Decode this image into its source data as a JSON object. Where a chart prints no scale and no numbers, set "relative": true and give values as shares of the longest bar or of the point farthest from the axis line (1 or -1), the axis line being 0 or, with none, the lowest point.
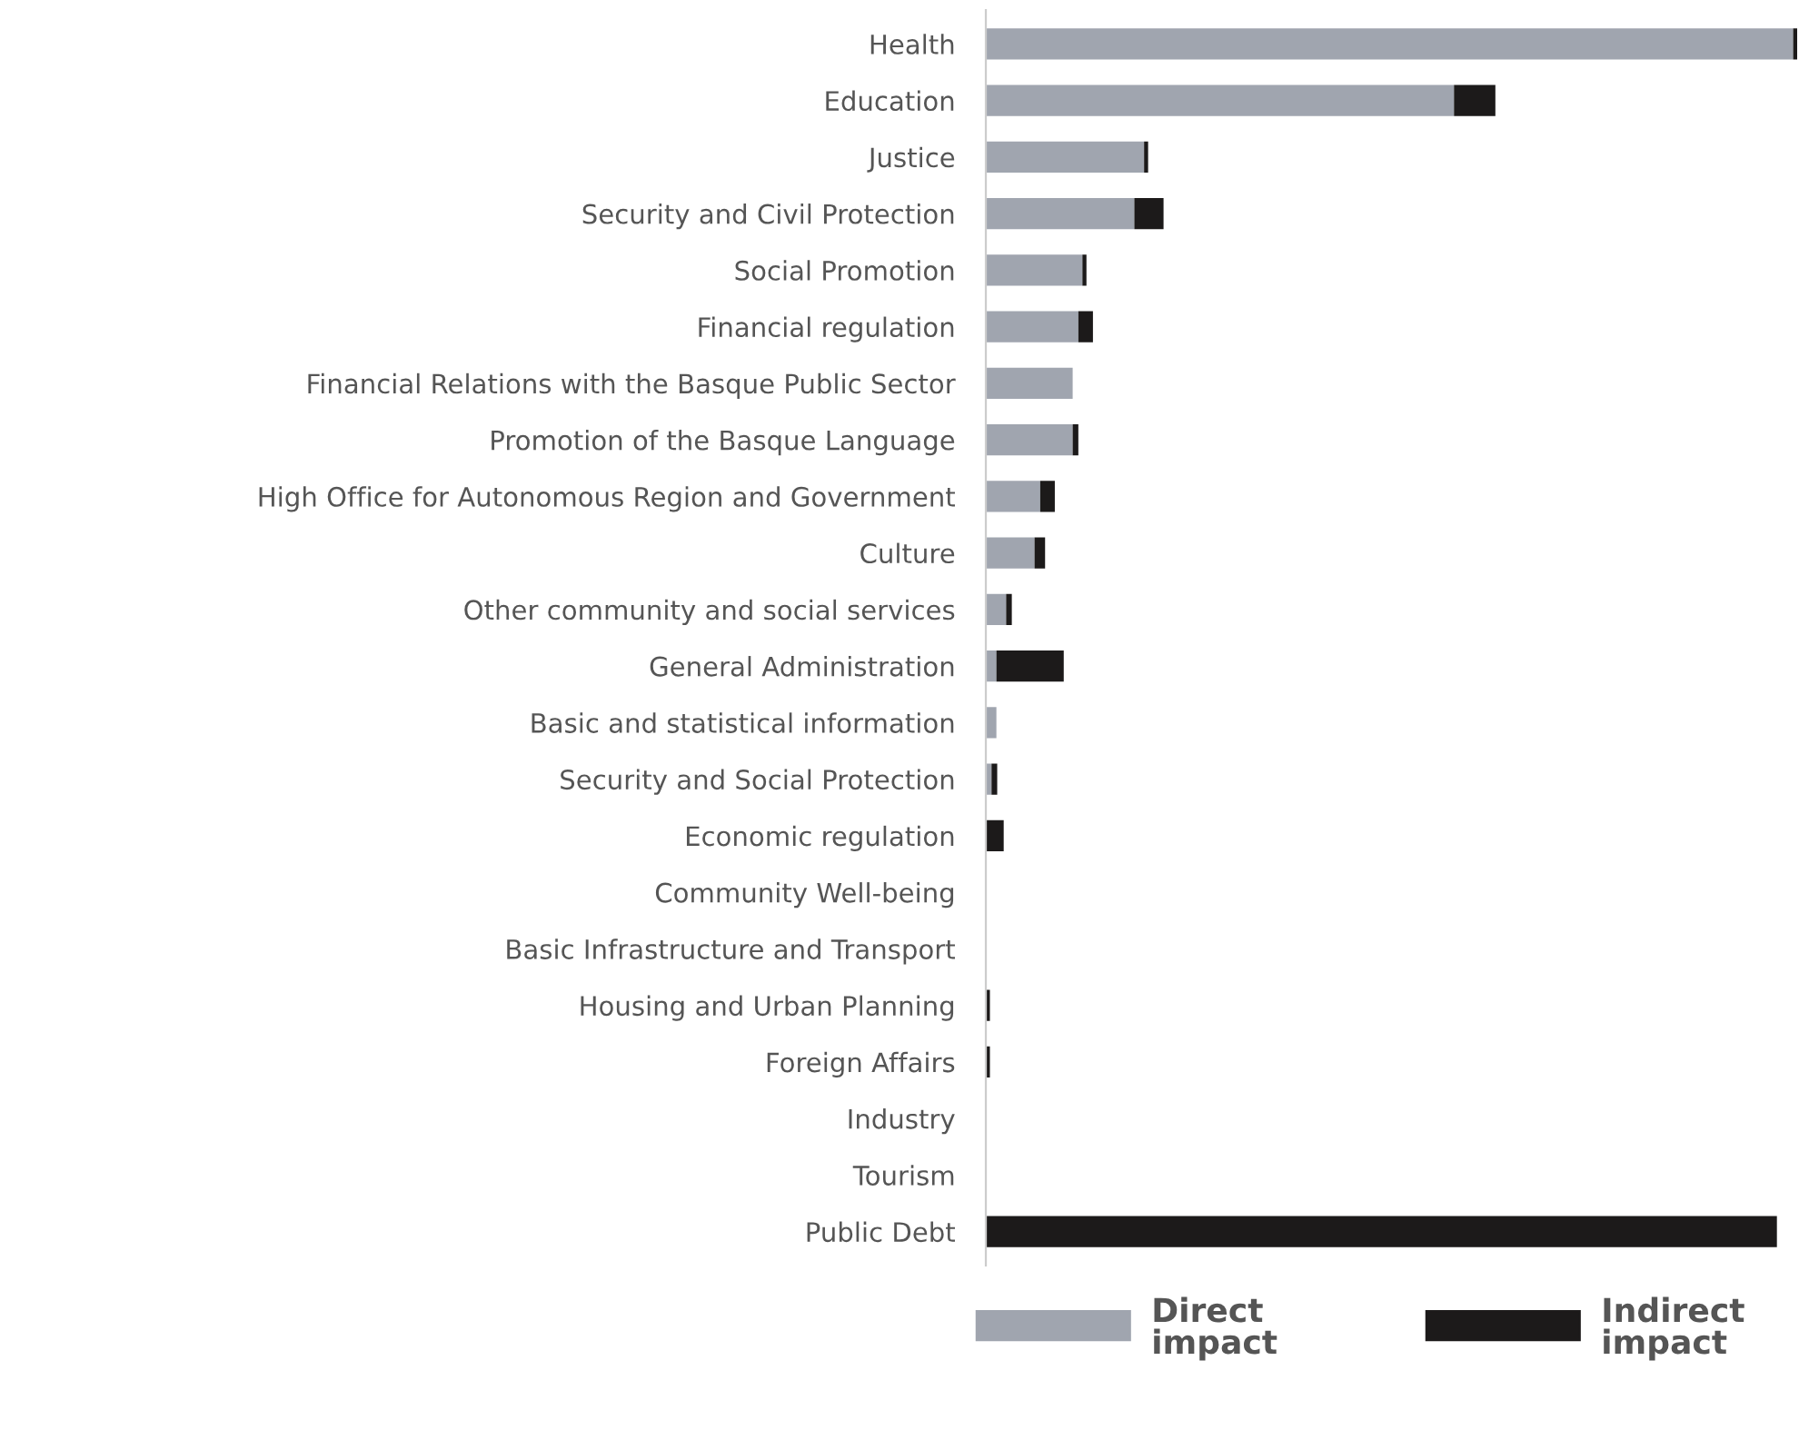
{
  "chart_data": {
    "type": "bar",
    "orientation": "horizontal",
    "stacked": true,
    "relative": true,
    "legend": "bottom",
    "grid": false,
    "categories": [
      "Health",
      "Education",
      "Justice",
      "Security and Civil Protection",
      "Social Promotion",
      "Financial regulation",
      "Financial Relations with the Basque Public Sector",
      "Promotion of the Basque Language",
      "High Office for Autonomous Region and Government",
      "Culture",
      "Other community and social services",
      "General Administration",
      "Basic and statistical information",
      "Security and Social Protection",
      "Economic regulation",
      "Community Well-being",
      "Basic Infrastructure and Transport",
      "Housing and Urban Planning",
      "Foreign Affairs",
      "Industry",
      "Tourism",
      "Public Debt"
    ],
    "series": [
      {
        "name": "Direct impact",
        "color": "#a0a5af",
        "values": [
          0.995,
          0.577,
          0.195,
          0.183,
          0.119,
          0.114,
          0.107,
          0.107,
          0.067,
          0.06,
          0.025,
          0.013,
          0.013,
          0.007,
          0,
          0,
          0,
          0,
          0,
          0,
          0,
          0
        ]
      },
      {
        "name": "Indirect impact",
        "color": "#1c1a1a",
        "values": [
          0.005,
          0.051,
          0.005,
          0.036,
          0.005,
          0.018,
          0,
          0.007,
          0.018,
          0.013,
          0.007,
          0.083,
          0,
          0.007,
          0.022,
          0,
          0,
          0.005,
          0.005,
          0,
          0,
          0.975
        ]
      }
    ]
  }
}
